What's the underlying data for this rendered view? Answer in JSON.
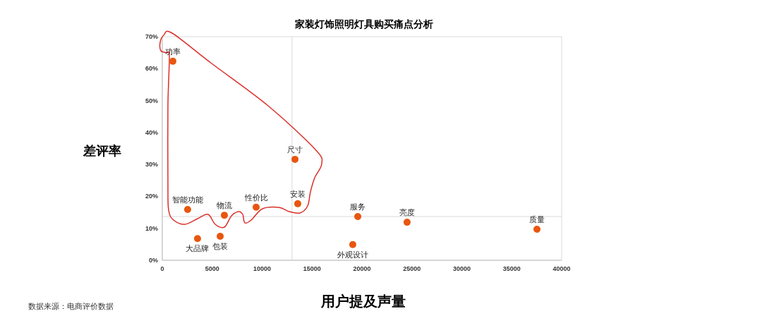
{
  "chart_data": {
    "type": "scatter",
    "title": "家装灯饰照明灯具购买痛点分析",
    "xlabel": "用户提及声量",
    "ylabel": "差评率",
    "series": [
      {
        "color": "#e8560f",
        "x": [
          1060,
          2540,
          3530,
          5800,
          6220,
          9400,
          13290,
          13570,
          19580,
          19080,
          24520,
          37530
        ],
        "values": [
          62.3,
          15.9,
          6.8,
          7.5,
          14.1,
          16.6,
          31.6,
          17.7,
          13.7,
          4.9,
          11.9,
          9.7
        ],
        "value_labels": [
          "功率",
          "智能功能",
          "大品牌",
          "包装",
          "物流",
          "性价比",
          "尺寸",
          "安装",
          "服务",
          "外观设计",
          "亮度",
          "质量"
        ]
      }
    ],
    "xlim": [
      0,
      40000
    ],
    "xticks": [
      0,
      5000,
      10000,
      15000,
      20000,
      25000,
      30000,
      35000,
      40000
    ],
    "ylim": [
      0,
      70
    ],
    "yticks": [
      {
        "value": 0,
        "label": "0%"
      },
      {
        "value": 10,
        "label": "10%"
      },
      {
        "value": 20,
        "label": "20%"
      },
      {
        "value": 30,
        "label": "30%"
      },
      {
        "value": 40,
        "label": "40%"
      },
      {
        "value": 50,
        "label": "50%"
      },
      {
        "value": 60,
        "label": "60%"
      },
      {
        "value": 70,
        "label": "70%"
      }
    ],
    "ref_lines": [
      {
        "axis": "x",
        "value": 13000,
        "color": "#d9d9d9"
      },
      {
        "axis": "y",
        "value": 13.7,
        "color": "#d9d9d9"
      }
    ],
    "marker": "circle",
    "grid": false,
    "annotations": [
      "数据来源：电商评价数据"
    ]
  }
}
